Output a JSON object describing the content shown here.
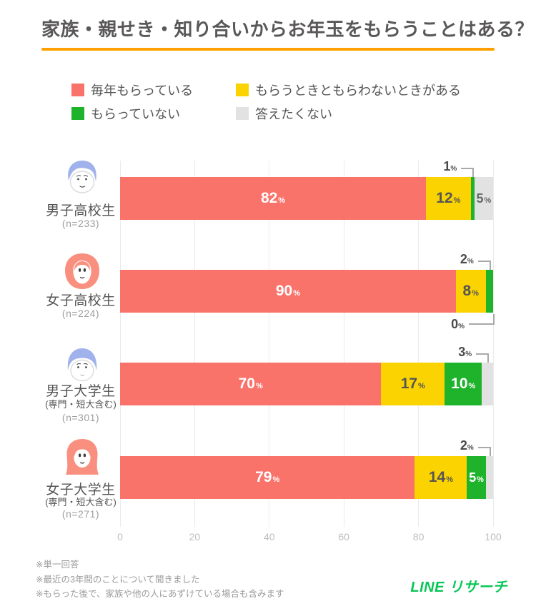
{
  "title": "家族・親せき・知り合いからお年玉をもらうことはある？",
  "accent_colors": {
    "title_underline": "#FFA000",
    "logo_green": "#06C755"
  },
  "legend": [
    {
      "label": "毎年もらっている",
      "color": "#F9736B"
    },
    {
      "label": "もらうときともらわないときがある",
      "color": "#FBD301"
    },
    {
      "label": "もらっていない",
      "color": "#1FB32C"
    },
    {
      "label": "答えたくない",
      "color": "#E2E2E2"
    }
  ],
  "chart_data": {
    "type": "bar",
    "orientation": "horizontal",
    "stacked": true,
    "unit": "%",
    "xlim": [
      0,
      100
    ],
    "x_ticks": [
      "0",
      "20",
      "40",
      "60",
      "80",
      "100"
    ],
    "grid": true,
    "categories": [
      "男子高校生",
      "女子高校生",
      "男子大学生",
      "女子大学生"
    ],
    "category_sublabels": [
      "",
      "",
      "(専門・短大含む)",
      "(専門・短大含む)"
    ],
    "category_n": [
      "(n=233)",
      "(n=224)",
      "(n=301)",
      "(n=271)"
    ],
    "category_icons": [
      "boy-highschool-avatar",
      "girl-highschool-avatar",
      "boy-university-avatar",
      "girl-university-avatar"
    ],
    "series": [
      {
        "key": "every-year",
        "name": "毎年もらっている",
        "color": "#F9736B",
        "text_color": "#ffffff",
        "values": [
          82,
          90,
          70,
          79
        ]
      },
      {
        "key": "sometimes",
        "name": "もらうときともらわないときがある",
        "color": "#FBD301",
        "text_color": "#555555",
        "values": [
          12,
          8,
          17,
          14
        ]
      },
      {
        "key": "not-receiving",
        "name": "もらっていない",
        "color": "#1FB32C",
        "text_color": "#ffffff",
        "values": [
          1,
          2,
          10,
          5
        ]
      },
      {
        "key": "no-answer",
        "name": "答えたくない",
        "color": "#E2E2E2",
        "text_color": "#666666",
        "values": [
          5,
          0,
          3,
          2
        ]
      }
    ]
  },
  "footnotes": [
    "※単一回答",
    "※最近の3年間のことについて聞きました",
    "※もらった後で、家族や他の人にあずけている場合も含みます"
  ],
  "logo": "LINE リサーチ"
}
